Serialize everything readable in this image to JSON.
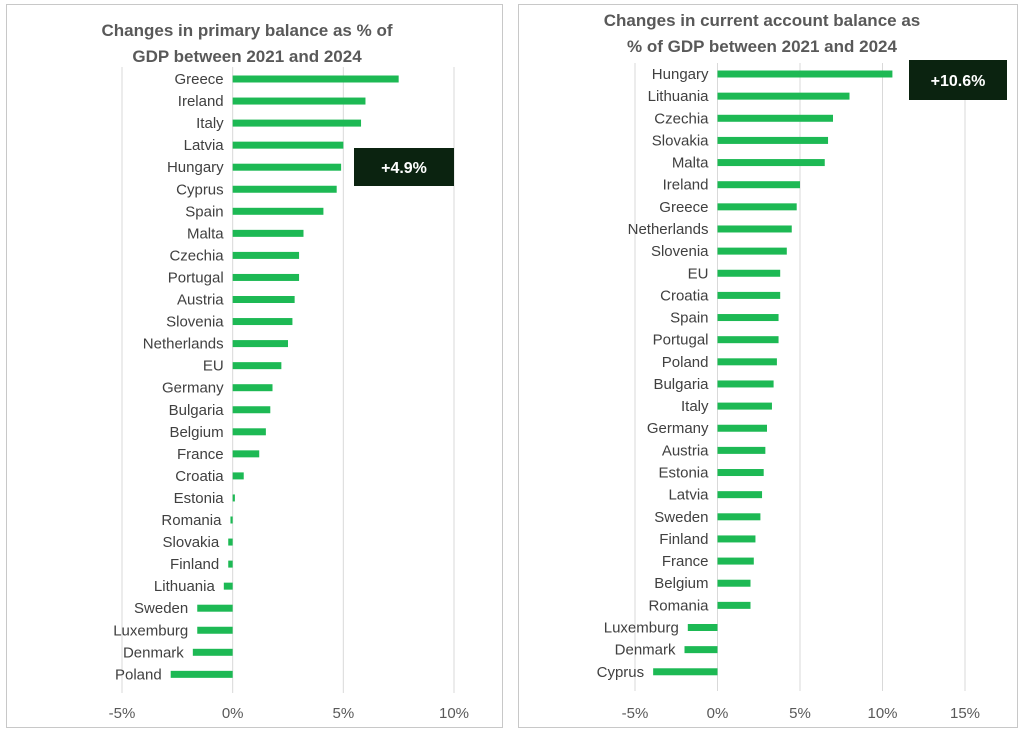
{
  "colors": {
    "bar": "#1db954",
    "grid": "#d9d9d9",
    "callout_bg": "#0b2310",
    "callout_text": "#ffffff"
  },
  "chart_data": [
    {
      "type": "bar",
      "orientation": "horizontal",
      "title_lines": [
        "Changes in primary balance as % of",
        "GDP between 2021 and 2024"
      ],
      "categories": [
        "Greece",
        "Ireland",
        "Italy",
        "Latvia",
        "Hungary",
        "Cyprus",
        "Spain",
        "Malta",
        "Czechia",
        "Portugal",
        "Austria",
        "Slovenia",
        "Netherlands",
        "EU",
        "Germany",
        "Bulgaria",
        "Belgium",
        "France",
        "Croatia",
        "Estonia",
        "Romania",
        "Slovakia",
        "Finland",
        "Lithuania",
        "Sweden",
        "Luxemburg",
        "Denmark",
        "Poland"
      ],
      "values": [
        7.5,
        6.0,
        5.8,
        5.0,
        4.9,
        4.7,
        4.1,
        3.2,
        3.0,
        3.0,
        2.8,
        2.7,
        2.5,
        2.2,
        1.8,
        1.7,
        1.5,
        1.2,
        0.5,
        0.1,
        -0.1,
        -0.2,
        -0.2,
        -0.4,
        -1.6,
        -1.6,
        -1.8,
        -2.8
      ],
      "xlim": [
        -5,
        10
      ],
      "xticks": [
        -5,
        0,
        5,
        10
      ],
      "xtick_labels": [
        "-5%",
        "0%",
        "5%",
        "10%"
      ],
      "grid": true,
      "callout": {
        "text": "+4.9%",
        "category": "Hungary"
      }
    },
    {
      "type": "bar",
      "orientation": "horizontal",
      "title_lines": [
        "Changes in current account balance as",
        "% of GDP between 2021 and 2024"
      ],
      "categories": [
        "Hungary",
        "Lithuania",
        "Czechia",
        "Slovakia",
        "Malta",
        "Ireland",
        "Greece",
        "Netherlands",
        "Slovenia",
        "EU",
        "Croatia",
        "Spain",
        "Portugal",
        "Poland",
        "Bulgaria",
        "Italy",
        "Germany",
        "Austria",
        "Estonia",
        "Latvia",
        "Sweden",
        "Finland",
        "France",
        "Belgium",
        "Romania",
        "Luxemburg",
        "Denmark",
        "Cyprus"
      ],
      "values": [
        10.6,
        8.0,
        7.0,
        6.7,
        6.5,
        5.0,
        4.8,
        4.5,
        4.2,
        3.8,
        3.8,
        3.7,
        3.7,
        3.6,
        3.4,
        3.3,
        3.0,
        2.9,
        2.8,
        2.7,
        2.6,
        2.3,
        2.2,
        2.0,
        2.0,
        -1.8,
        -2.0,
        -3.9
      ],
      "xlim": [
        -5,
        15
      ],
      "xticks": [
        -5,
        0,
        5,
        10,
        15
      ],
      "xtick_labels": [
        "-5%",
        "0%",
        "5%",
        "10%",
        "15%"
      ],
      "grid": true,
      "callout": {
        "text": "+10.6%",
        "category": "Hungary"
      }
    }
  ]
}
